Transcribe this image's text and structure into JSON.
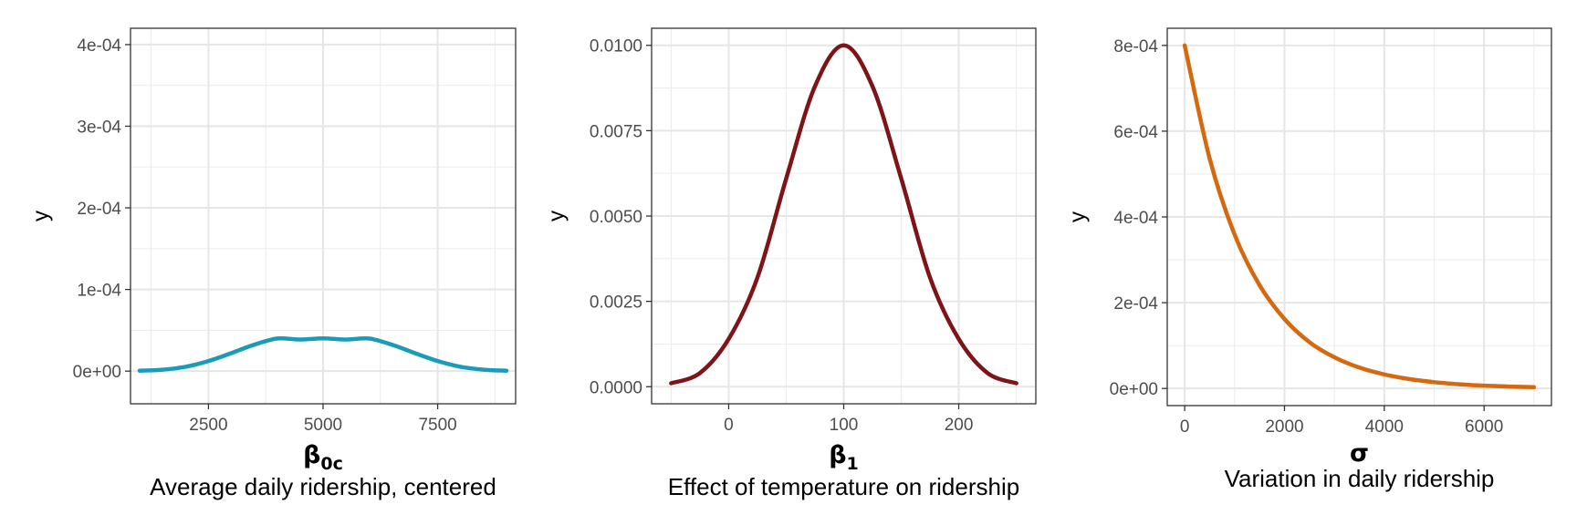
{
  "chart_data": [
    {
      "type": "line",
      "curve": "normal density",
      "color": "#1a9cb8",
      "ylabel": "y",
      "xlabel_symbol": "β",
      "xlabel_subscript": "0c",
      "xlabel_desc": "Average daily ridership, centered",
      "xlim": [
        800,
        9200
      ],
      "ylim": [
        -4e-05,
        0.00042
      ],
      "xticks": [
        2500,
        5000,
        7500
      ],
      "xtick_labels": [
        "2500",
        "5000",
        "7500"
      ],
      "yticks": [
        0,
        0.0001,
        0.0002,
        0.0003,
        0.0004
      ],
      "ytick_labels": [
        "0e+00",
        "1e-04",
        "2e-04",
        "3e-04",
        "4e-04"
      ],
      "x": [
        1000,
        1500,
        2000,
        2500,
        3000,
        3500,
        4000,
        4500,
        5000,
        5500,
        6000,
        6500,
        7000,
        7500,
        8000,
        8500,
        9000
      ],
      "y": [
        5e-07,
        1.8e-06,
        5.3e-06,
        1.24e-05,
        2.21e-05,
        3.24e-05,
        3.99e-05,
        3.87e-05,
        4e-05,
        3.87e-05,
        3.99e-05,
        3.24e-05,
        2.21e-05,
        1.24e-05,
        5.3e-06,
        1.8e-06,
        5e-07
      ]
    },
    {
      "type": "line",
      "curve": "normal density",
      "color": "#7f1418",
      "ylabel": "y",
      "xlabel_symbol": "β",
      "xlabel_subscript": "1",
      "xlabel_desc": "Effect of temperature on ridership",
      "xlim": [
        -67,
        267
      ],
      "ylim": [
        -0.0005,
        0.0105
      ],
      "xticks": [
        0,
        100,
        200
      ],
      "xtick_labels": [
        "0",
        "100",
        "200"
      ],
      "yticks": [
        0,
        0.0025,
        0.005,
        0.0075,
        0.01
      ],
      "ytick_labels": [
        "0.0000",
        "0.0025",
        "0.0050",
        "0.0075",
        "0.0100"
      ],
      "x": [
        -50,
        -25,
        0,
        25,
        50,
        75,
        100,
        125,
        150,
        175,
        200,
        225,
        250
      ],
      "y": [
        0.0001,
        0.0004,
        0.0014,
        0.0032,
        0.0061,
        0.0088,
        0.01,
        0.0088,
        0.0061,
        0.0032,
        0.0014,
        0.0004,
        0.0001
      ]
    },
    {
      "type": "line",
      "curve": "exponential density",
      "color": "#d5690f",
      "ylabel": "y",
      "xlabel_symbol": "σ",
      "xlabel_subscript": "",
      "xlabel_desc": "Variation in daily ridership",
      "xlim": [
        -350,
        7350
      ],
      "ylim": [
        -4e-05,
        0.00084
      ],
      "xticks": [
        0,
        2000,
        4000,
        6000
      ],
      "xtick_labels": [
        "0",
        "2000",
        "4000",
        "6000"
      ],
      "yticks": [
        0,
        0.0002,
        0.0004,
        0.0006,
        0.0008
      ],
      "ytick_labels": [
        "0e+00",
        "2e-04",
        "4e-04",
        "6e-04",
        "8e-04"
      ],
      "x": [
        0,
        500,
        1000,
        1500,
        2000,
        2500,
        3000,
        3500,
        4000,
        4500,
        5000,
        5500,
        6000,
        6500,
        7000
      ],
      "y": [
        0.0008,
        0.000536,
        0.000359,
        0.000241,
        0.000162,
        0.000108,
        7.26e-05,
        4.87e-05,
        3.26e-05,
        2.19e-05,
        1.47e-05,
        9.8e-06,
        6.6e-06,
        4.4e-06,
        3e-06
      ]
    }
  ]
}
